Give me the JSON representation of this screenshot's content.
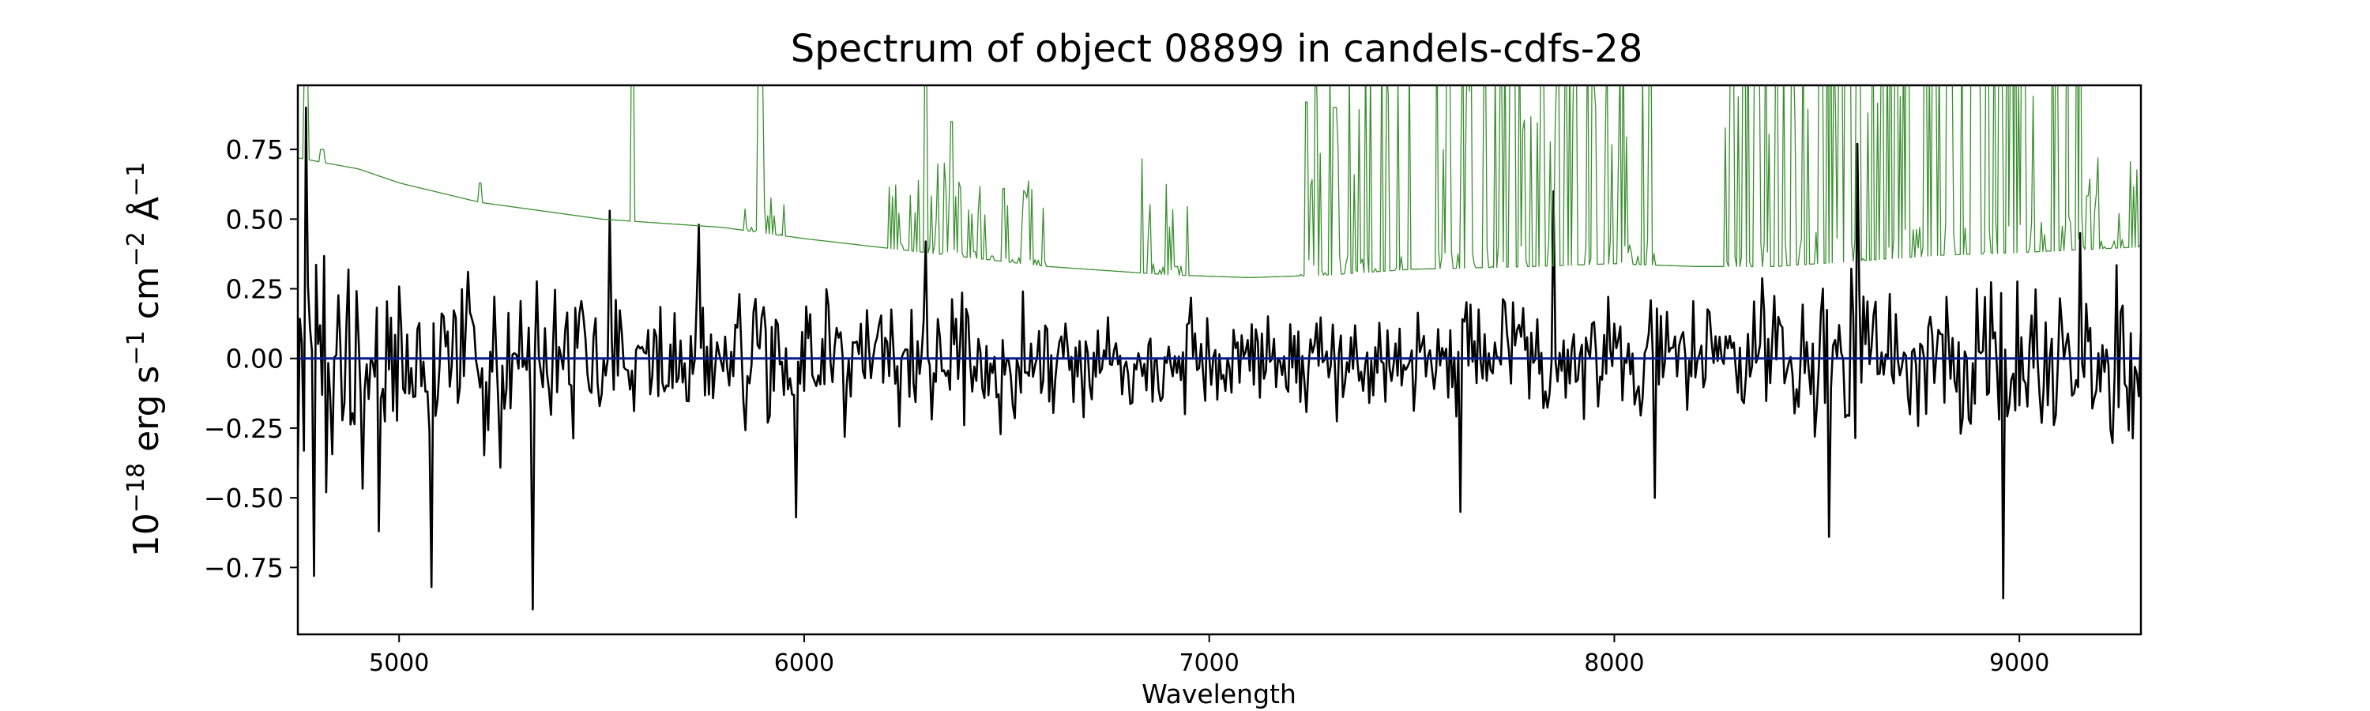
{
  "chart_data": {
    "type": "line",
    "title": "Spectrum of object 08899 in candels-cdfs-28",
    "xlabel": "Wavelength",
    "ylabel": {
      "base": "10",
      "exp": "−18",
      "erg": " erg s",
      "e1": "−1",
      "cm": " cm",
      "e2": "−2",
      "ang": " Å",
      "e3": "−1"
    },
    "xlim": [
      4750,
      9300
    ],
    "ylim": [
      -0.99,
      0.98
    ],
    "xticks": [
      {
        "value": 5000,
        "label": "5000"
      },
      {
        "value": 6000,
        "label": "6000"
      },
      {
        "value": 7000,
        "label": "7000"
      },
      {
        "value": 8000,
        "label": "8000"
      },
      {
        "value": 9000,
        "label": "9000"
      }
    ],
    "yticks": [
      {
        "value": 0.75,
        "label": "0.75"
      },
      {
        "value": 0.5,
        "label": "0.50"
      },
      {
        "value": 0.25,
        "label": "0.25"
      },
      {
        "value": 0.0,
        "label": "0.00"
      },
      {
        "value": -0.25,
        "label": "−0.25"
      },
      {
        "value": -0.5,
        "label": "−0.50"
      },
      {
        "value": -0.75,
        "label": "−0.75"
      }
    ],
    "grid": false,
    "series": [
      {
        "role": "flux",
        "color": "#000000",
        "sample_step": 5,
        "noise_envelope": [
          [
            4750,
            0.48
          ],
          [
            5000,
            0.28
          ],
          [
            5500,
            0.22
          ],
          [
            6000,
            0.2
          ],
          [
            6500,
            0.18
          ],
          [
            7000,
            0.17
          ],
          [
            7500,
            0.17
          ],
          [
            8000,
            0.19
          ],
          [
            8500,
            0.22
          ],
          [
            9000,
            0.26
          ],
          [
            9300,
            0.3
          ]
        ],
        "spikes": [
          [
            4770,
            0.9
          ],
          [
            4790,
            -0.78
          ],
          [
            4820,
            -0.48
          ],
          [
            4950,
            -0.62
          ],
          [
            5080,
            -0.82
          ],
          [
            5330,
            -0.9
          ],
          [
            5520,
            0.53
          ],
          [
            5740,
            0.48
          ],
          [
            5980,
            -0.57
          ],
          [
            6300,
            0.42
          ],
          [
            7620,
            -0.55
          ],
          [
            7850,
            0.6
          ],
          [
            8100,
            -0.5
          ],
          [
            8530,
            -0.64
          ],
          [
            8600,
            0.77
          ],
          [
            8960,
            -0.86
          ],
          [
            9150,
            0.45
          ]
        ]
      },
      {
        "role": "zero",
        "color": "#0a1f8f",
        "points": [
          [
            4750,
            0.0
          ],
          [
            9300,
            0.0
          ]
        ]
      },
      {
        "role": "sky",
        "color": "#3a8f2f",
        "continuum": [
          [
            4750,
            0.72
          ],
          [
            4900,
            0.68
          ],
          [
            5000,
            0.63
          ],
          [
            5200,
            0.56
          ],
          [
            5500,
            0.5
          ],
          [
            5800,
            0.47
          ],
          [
            6000,
            0.43
          ],
          [
            6300,
            0.38
          ],
          [
            6600,
            0.33
          ],
          [
            6900,
            0.3
          ],
          [
            7100,
            0.29
          ],
          [
            7300,
            0.3
          ],
          [
            7500,
            0.32
          ],
          [
            7800,
            0.33
          ],
          [
            8000,
            0.34
          ],
          [
            8200,
            0.33
          ],
          [
            8400,
            0.33
          ],
          [
            8600,
            0.35
          ],
          [
            8800,
            0.37
          ],
          [
            9000,
            0.38
          ],
          [
            9300,
            0.4
          ]
        ],
        "bands": [
          [
            5850,
            5950,
            0.06
          ],
          [
            6200,
            6600,
            0.12
          ],
          [
            6820,
            6950,
            0.15
          ],
          [
            7220,
            7500,
            0.3
          ],
          [
            7560,
            8100,
            0.35
          ],
          [
            8270,
            8700,
            0.45
          ],
          [
            8700,
            9150,
            0.5
          ],
          [
            9150,
            9300,
            0.12
          ]
        ],
        "emission_lines": [
          [
            4770,
            1.05
          ],
          [
            4810,
            0.75
          ],
          [
            5199,
            0.63
          ],
          [
            5577,
            1.2
          ],
          [
            5889,
            1.0
          ],
          [
            5896,
            0.98
          ],
          [
            6300,
            1.1
          ],
          [
            6364,
            0.85
          ],
          [
            7240,
            0.92
          ],
          [
            7310,
            0.9
          ],
          [
            7590,
            1.05
          ],
          [
            7720,
            1.0
          ],
          [
            7750,
            1.1
          ],
          [
            7820,
            1.0
          ],
          [
            7880,
            1.0
          ],
          [
            8290,
            1.05
          ],
          [
            8350,
            1.1
          ],
          [
            8400,
            1.05
          ],
          [
            8440,
            1.1
          ],
          [
            8660,
            0.95
          ],
          [
            8790,
            1.1
          ],
          [
            8830,
            1.05
          ],
          [
            8890,
            1.1
          ],
          [
            8920,
            1.05
          ],
          [
            9010,
            1.1
          ]
        ]
      }
    ]
  }
}
